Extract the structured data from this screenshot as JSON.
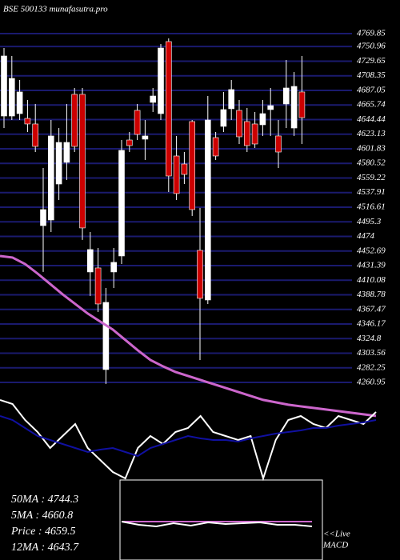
{
  "chart_data": [
    {
      "type": "candlestick",
      "title": "BSE 500133 munafasutra.pro",
      "open": [
        4649.6,
        4649.6,
        4653.1,
        4646.1,
        4638.0,
        4489.7,
        4497.9,
        4550.4,
        4582.0,
        4681.2,
        4681.2,
        4422.1,
        4427.9,
        4279.7,
        4422.1,
        4445.4,
        4614.6,
        4657.8,
        4615.8,
        4669.5,
        4653.1,
        4758.2,
        4591.3,
        4579.6,
        4641.5,
        4453.6,
        4381.2,
        4618.1,
        4634.5,
        4660.2,
        4657.8,
        4641.5,
        4638.0,
        4636.8,
        4659.0,
        4620.5,
        4667.2,
        4632.1,
        4684.7
      ],
      "high": [
        4748.8,
        4737.2,
        4702.2,
        4673.0,
        4667.2,
        4573.8,
        4643.8,
        4632.1,
        4667.2,
        4690.5,
        4690.5,
        4480.4,
        4457.1,
        4398.7,
        4457.1,
        4614.6,
        4626.3,
        4667.2,
        4643.8,
        4690.5,
        4754.7,
        4762.8,
        4620.5,
        4597.1,
        4643.8,
        4515.5,
        4678.8,
        4626.3,
        4684.7,
        4702.2,
        4673.0,
        4661.3,
        4655.5,
        4673.0,
        4690.5,
        4643.8,
        4731.4,
        4713.8,
        4737.2
      ],
      "low": [
        4632.1,
        4643.8,
        4643.8,
        4626.3,
        4597.1,
        4422.1,
        4480.4,
        4527.1,
        4556.3,
        4597.1,
        4468.8,
        4387.1,
        4363.7,
        4258.7,
        4398.7,
        4433.7,
        4597.1,
        4614.6,
        4585.5,
        4655.5,
        4643.8,
        4538.8,
        4527.1,
        4550.4,
        4503.8,
        4293.7,
        4375.4,
        4585.5,
        4626.3,
        4643.8,
        4608.8,
        4597.1,
        4603.0,
        4620.5,
        4620.5,
        4573.8,
        4632.1,
        4620.5,
        4608.8
      ],
      "close": [
        4737.2,
        4704.5,
        4684.7,
        4638.0,
        4605.3,
        4513.1,
        4620.5,
        4611.1,
        4611.1,
        4605.3,
        4486.3,
        4454.8,
        4375.4,
        4377.7,
        4436.1,
        4599.5,
        4606.5,
        4622.8,
        4620.5,
        4678.8,
        4748.8,
        4562.1,
        4536.5,
        4564.4,
        4513.1,
        4383.6,
        4643.8,
        4591.3,
        4659.0,
        4688.2,
        4619.3,
        4606.5,
        4608.8,
        4653.1,
        4664.8,
        4597.1,
        4690.5,
        4692.8,
        4647.3
      ],
      "up_color": "#ffffff",
      "down_color": "#cc0000",
      "ma": {
        "color": "#cc66cc",
        "values": [
          4445.4,
          4443.1,
          4433.7,
          4419.7,
          4404.6,
          4389.4,
          4375.4,
          4361.4,
          4349.7,
          4338.0,
          4322.9,
          4307.7,
          4293.7,
          4284.4,
          4276.2,
          4270.4,
          4264.5,
          4258.7,
          4252.9,
          4247.0,
          4241.2,
          4235.4,
          4231.9,
          4228.4,
          4226.0,
          4223.7,
          4221.4,
          4219.1,
          4216.7,
          4214.4,
          4212.1
        ]
      },
      "ylim": [
        4260.95,
        4769.85
      ],
      "yticks": [
        4769.85,
        4750.96,
        4729.65,
        4708.35,
        4687.05,
        4665.74,
        4644.44,
        4623.13,
        4601.83,
        4580.52,
        4559.22,
        4537.91,
        4516.61,
        4495.3,
        4474,
        4452.69,
        4431.39,
        4410.08,
        4388.78,
        4367.47,
        4346.17,
        4324.8,
        4303.56,
        4282.25,
        4260.95
      ],
      "grid": true,
      "grid_color": "#1a1a6e",
      "annotations": [
        "50MA : 4744.3",
        "5MA : 4660.8",
        "Price  : 4659.5",
        "12MA : 4643.7",
        "<<Live",
        "MACD"
      ]
    },
    {
      "type": "line",
      "ylim": [
        0,
        105
      ],
      "series": [
        {
          "color": "#ffffff",
          "values": [
            100,
            95,
            75,
            60,
            40,
            55,
            70,
            40,
            25,
            10,
            2,
            40,
            55,
            45,
            60,
            65,
            80,
            60,
            55,
            50,
            55,
            2,
            50,
            75,
            80,
            70,
            65,
            80,
            75,
            70,
            85
          ]
        },
        {
          "color": "#1010a0",
          "values": [
            80,
            75,
            65,
            55,
            50,
            45,
            40,
            35,
            38,
            40,
            35,
            30,
            40,
            45,
            50,
            55,
            52,
            50,
            50,
            48,
            52,
            55,
            58,
            60,
            62,
            65,
            65,
            68,
            70,
            72,
            75
          ]
        }
      ]
    },
    {
      "type": "line",
      "ylim": [
        -50,
        50
      ],
      "series": [
        {
          "color": "#cc66cc",
          "values": [
            -2,
            -2,
            -2,
            -2,
            -2,
            -2,
            -2,
            -2,
            -2,
            -2,
            -2,
            -2
          ]
        },
        {
          "color": "#ffffff",
          "values": [
            -2,
            -6,
            -8,
            -4,
            -7,
            -3,
            -5,
            -4,
            -3,
            -6,
            -6,
            -8
          ]
        }
      ]
    }
  ]
}
